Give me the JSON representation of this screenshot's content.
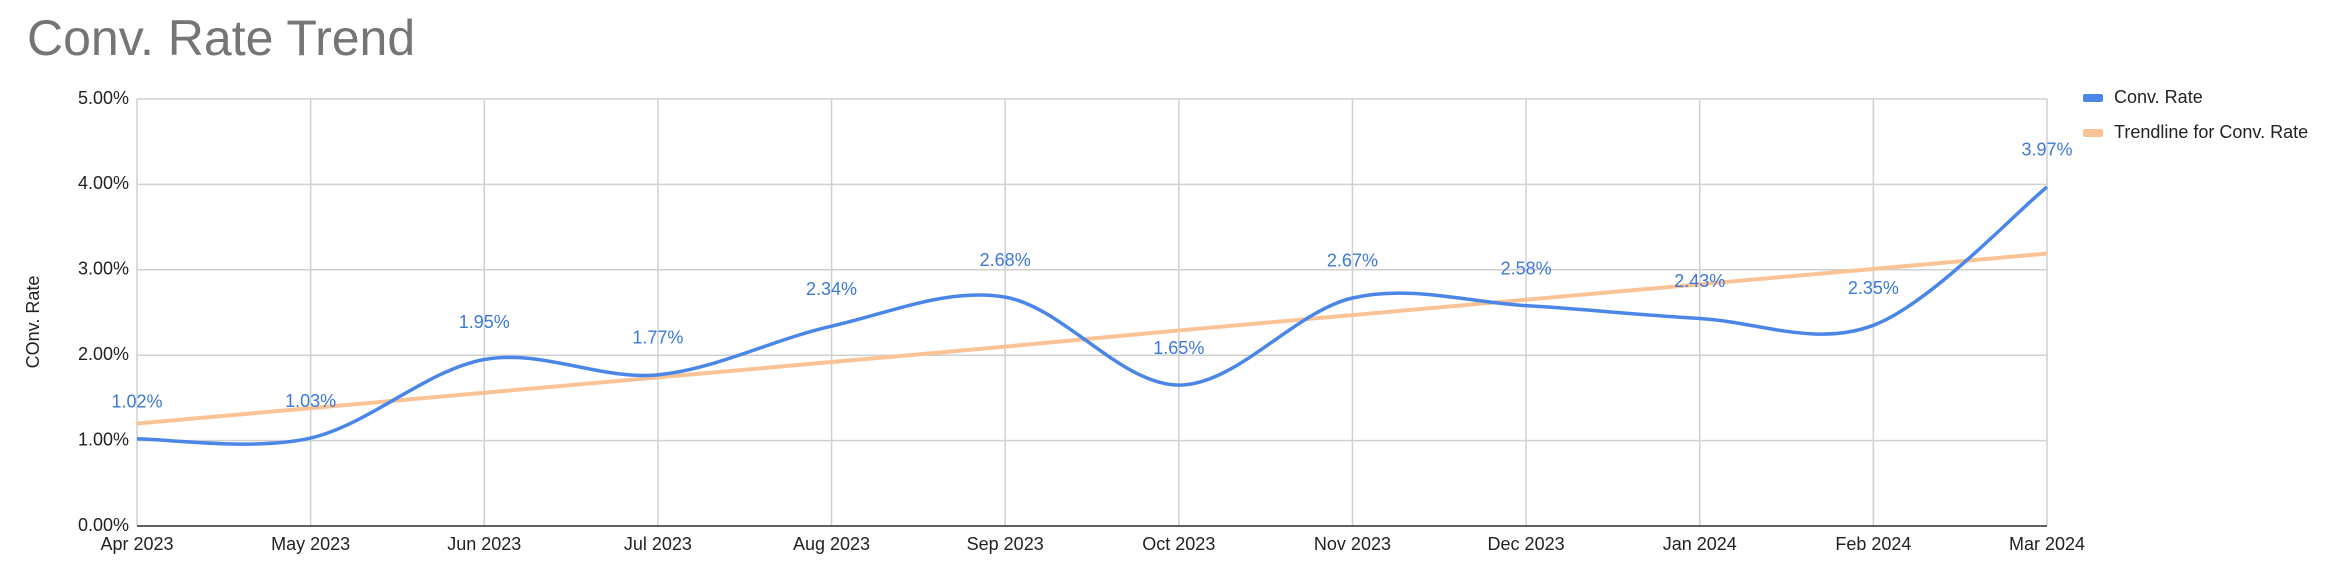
{
  "chart_data": {
    "type": "line",
    "title": "Conv. Rate Trend",
    "y_label": "COnv. Rate",
    "categories": [
      "Apr 2023",
      "May 2023",
      "Jun 2023",
      "Jul 2023",
      "Aug 2023",
      "Sep 2023",
      "Oct 2023",
      "Nov 2023",
      "Dec 2023",
      "Jan 2024",
      "Feb 2024",
      "Mar 2024"
    ],
    "series": [
      {
        "name": "Conv. Rate",
        "color": "#4a86e8",
        "values": [
          1.02,
          1.03,
          1.95,
          1.77,
          2.34,
          2.68,
          1.65,
          2.67,
          2.58,
          2.43,
          2.35,
          3.97
        ],
        "value_labels": [
          "1.02%",
          "1.03%",
          "1.95%",
          "1.77%",
          "2.34%",
          "2.68%",
          "1.65%",
          "2.67%",
          "2.58%",
          "2.43%",
          "2.35%",
          "3.97%"
        ]
      },
      {
        "name": "Trendline for Conv. Rate",
        "color": "#f9c395",
        "values": [
          1.2,
          1.38,
          1.56,
          1.74,
          1.92,
          2.1,
          2.29,
          2.47,
          2.65,
          2.83,
          3.01,
          3.19
        ]
      }
    ],
    "ylim": [
      0,
      5
    ],
    "yticks": [
      {
        "value": 0,
        "label": "0.00%"
      },
      {
        "value": 1,
        "label": "1.00%"
      },
      {
        "value": 2,
        "label": "2.00%"
      },
      {
        "value": 3,
        "label": "3.00%"
      },
      {
        "value": 4,
        "label": "4.00%"
      },
      {
        "value": 5,
        "label": "5.00%"
      }
    ],
    "grid": true,
    "legend": "right"
  }
}
